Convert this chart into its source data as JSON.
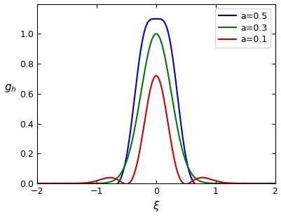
{
  "xi_range": [
    -2.0,
    2.0
  ],
  "num_points": 2000,
  "a_values": [
    0.5,
    0.3,
    0.1
  ],
  "colors": [
    "#0000cc",
    "#007700",
    "#cc0000"
  ],
  "labels": [
    "a=0.5",
    "a=0.3",
    "a=0.1"
  ],
  "xlim": [
    -2.0,
    2.0
  ],
  "ylim": [
    0.0,
    1.2
  ],
  "xticks": [
    -2,
    -1,
    0,
    1,
    2
  ],
  "yticks": [
    0,
    0.2,
    0.4,
    0.6,
    0.8,
    1.0
  ],
  "legend_loc": "upper right",
  "gamma": 1.0,
  "figsize": [
    4.02,
    3.1
  ],
  "dpi": 100,
  "curve_params": {
    "0.5": {
      "T": 0.055,
      "a2": -0.3
    },
    "0.3": {
      "T": 0.065,
      "a2": 0.0
    },
    "0.1": {
      "T": 0.085,
      "a2": 0.55
    }
  },
  "peak_targets": [
    1.1,
    1.0,
    0.72
  ]
}
